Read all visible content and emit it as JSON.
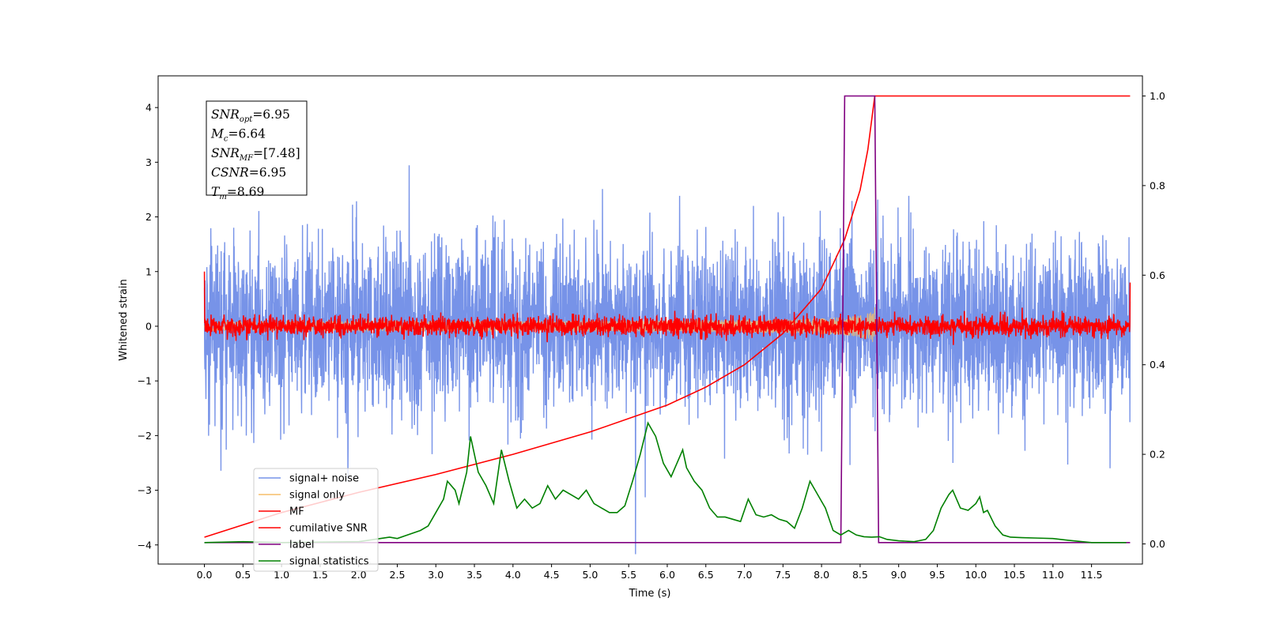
{
  "chart_data": {
    "type": "line",
    "xlabel": "Time (s)",
    "ylabel": "Whitened strain",
    "xlim": [
      -0.6,
      12.16
    ],
    "ylim": [
      -4.35,
      4.58
    ],
    "y2lim": [
      -0.045,
      1.045
    ],
    "xticks": [
      0.0,
      0.5,
      1.0,
      1.5,
      2.0,
      2.5,
      3.0,
      3.5,
      4.0,
      4.5,
      5.0,
      5.5,
      6.0,
      6.5,
      7.0,
      7.5,
      8.0,
      8.5,
      9.0,
      9.5,
      10.0,
      10.5,
      11.0,
      11.5
    ],
    "xtick_labels": [
      "0.0",
      "0.5",
      "1.0",
      "1.5",
      "2.0",
      "2.5",
      "3.0",
      "3.5",
      "4.0",
      "4.5",
      "5.0",
      "5.5",
      "6.0",
      "6.5",
      "7.0",
      "7.5",
      "8.0",
      "8.5",
      "9.0",
      "9.5",
      "10.0",
      "10.5",
      "11.0",
      "11.5"
    ],
    "yticks": [
      -4,
      -3,
      -2,
      -1,
      0,
      1,
      2,
      3,
      4
    ],
    "ytick_labels": [
      "−4",
      "−3",
      "−2",
      "−1",
      "0",
      "1",
      "2",
      "3",
      "4"
    ],
    "y2ticks": [
      0.0,
      0.2,
      0.4,
      0.6,
      0.8,
      1.0
    ],
    "y2tick_labels": [
      "0.0",
      "0.2",
      "0.4",
      "0.6",
      "0.8",
      "1.0"
    ],
    "grid": false,
    "legend_placement": "lower-left",
    "annotation": {
      "lines": [
        {
          "var": "SNR",
          "sub": "opt",
          "value": "=6.95"
        },
        {
          "var": "M",
          "sub": "c",
          "value": "=6.64"
        },
        {
          "var": "SNR",
          "sub": "MF",
          "value": "=[7.48]"
        },
        {
          "var": "CSNR",
          "sub": "",
          "value": "=6.95"
        },
        {
          "var": "T",
          "sub": "m",
          "value": "=8.69"
        }
      ]
    },
    "series": [
      {
        "name": "signal+ noise",
        "color": "#7793e8",
        "axis": "left",
        "kind": "noise",
        "x_range": [
          0.0,
          12.0
        ],
        "typical_amplitude": 1.8,
        "peak_max": 4.17
      },
      {
        "name": "signal only",
        "color": "#f5bd6a",
        "axis": "left",
        "kind": "chirp",
        "x_range": [
          0.0,
          8.69
        ],
        "final_amplitude": 0.6
      },
      {
        "name": "MF",
        "color": "#ff0000",
        "axis": "left",
        "kind": "noise",
        "x_range": [
          0.0,
          12.0
        ],
        "typical_amplitude": 0.2,
        "start_value": 1.0,
        "end_value": 0.8
      },
      {
        "name": "cumilative SNR",
        "color": "#ff0000",
        "axis": "right",
        "kind": "curve",
        "points": [
          [
            0.0,
            0.015
          ],
          [
            1.0,
            0.07
          ],
          [
            2.0,
            0.115
          ],
          [
            3.0,
            0.155
          ],
          [
            4.0,
            0.2
          ],
          [
            5.0,
            0.25
          ],
          [
            6.0,
            0.31
          ],
          [
            6.5,
            0.35
          ],
          [
            7.0,
            0.4
          ],
          [
            7.5,
            0.47
          ],
          [
            8.0,
            0.57
          ],
          [
            8.3,
            0.68
          ],
          [
            8.5,
            0.79
          ],
          [
            8.6,
            0.88
          ],
          [
            8.69,
            1.0
          ],
          [
            12.0,
            1.0
          ]
        ]
      },
      {
        "name": "label",
        "color": "#800080",
        "axis": "right",
        "kind": "curve",
        "points": [
          [
            0.0,
            0.003
          ],
          [
            8.25,
            0.003
          ],
          [
            8.3,
            1.0
          ],
          [
            8.69,
            1.0
          ],
          [
            8.74,
            0.003
          ],
          [
            12.0,
            0.003
          ]
        ]
      },
      {
        "name": "signal statistics",
        "color": "#008000",
        "axis": "right",
        "kind": "curve",
        "points": [
          [
            0.0,
            0.003
          ],
          [
            0.5,
            0.005
          ],
          [
            1.0,
            0.003
          ],
          [
            1.5,
            0.004
          ],
          [
            2.0,
            0.005
          ],
          [
            2.2,
            0.01
          ],
          [
            2.4,
            0.015
          ],
          [
            2.5,
            0.012
          ],
          [
            2.6,
            0.018
          ],
          [
            2.8,
            0.03
          ],
          [
            2.9,
            0.04
          ],
          [
            3.0,
            0.07
          ],
          [
            3.1,
            0.1
          ],
          [
            3.15,
            0.14
          ],
          [
            3.25,
            0.12
          ],
          [
            3.3,
            0.09
          ],
          [
            3.4,
            0.16
          ],
          [
            3.45,
            0.24
          ],
          [
            3.55,
            0.16
          ],
          [
            3.65,
            0.13
          ],
          [
            3.75,
            0.09
          ],
          [
            3.85,
            0.21
          ],
          [
            3.95,
            0.14
          ],
          [
            4.05,
            0.08
          ],
          [
            4.15,
            0.1
          ],
          [
            4.25,
            0.08
          ],
          [
            4.35,
            0.09
          ],
          [
            4.45,
            0.13
          ],
          [
            4.55,
            0.1
          ],
          [
            4.65,
            0.12
          ],
          [
            4.75,
            0.11
          ],
          [
            4.85,
            0.1
          ],
          [
            4.95,
            0.12
          ],
          [
            5.05,
            0.09
          ],
          [
            5.15,
            0.08
          ],
          [
            5.25,
            0.07
          ],
          [
            5.35,
            0.07
          ],
          [
            5.45,
            0.085
          ],
          [
            5.55,
            0.14
          ],
          [
            5.65,
            0.2
          ],
          [
            5.75,
            0.27
          ],
          [
            5.85,
            0.24
          ],
          [
            5.95,
            0.18
          ],
          [
            6.05,
            0.15
          ],
          [
            6.15,
            0.19
          ],
          [
            6.2,
            0.21
          ],
          [
            6.25,
            0.17
          ],
          [
            6.35,
            0.14
          ],
          [
            6.45,
            0.12
          ],
          [
            6.55,
            0.08
          ],
          [
            6.65,
            0.06
          ],
          [
            6.75,
            0.06
          ],
          [
            6.85,
            0.055
          ],
          [
            6.95,
            0.05
          ],
          [
            7.05,
            0.1
          ],
          [
            7.15,
            0.065
          ],
          [
            7.25,
            0.06
          ],
          [
            7.35,
            0.065
          ],
          [
            7.45,
            0.055
          ],
          [
            7.55,
            0.05
          ],
          [
            7.65,
            0.035
          ],
          [
            7.75,
            0.08
          ],
          [
            7.85,
            0.14
          ],
          [
            7.95,
            0.11
          ],
          [
            8.05,
            0.08
          ],
          [
            8.15,
            0.03
          ],
          [
            8.25,
            0.02
          ],
          [
            8.35,
            0.03
          ],
          [
            8.45,
            0.02
          ],
          [
            8.55,
            0.016
          ],
          [
            8.65,
            0.015
          ],
          [
            8.75,
            0.016
          ],
          [
            8.85,
            0.01
          ],
          [
            9.0,
            0.007
          ],
          [
            9.2,
            0.005
          ],
          [
            9.35,
            0.01
          ],
          [
            9.45,
            0.03
          ],
          [
            9.55,
            0.08
          ],
          [
            9.65,
            0.11
          ],
          [
            9.7,
            0.12
          ],
          [
            9.8,
            0.08
          ],
          [
            9.9,
            0.075
          ],
          [
            10.0,
            0.09
          ],
          [
            10.05,
            0.105
          ],
          [
            10.1,
            0.07
          ],
          [
            10.15,
            0.075
          ],
          [
            10.25,
            0.04
          ],
          [
            10.35,
            0.02
          ],
          [
            10.45,
            0.015
          ],
          [
            10.6,
            0.014
          ],
          [
            10.8,
            0.013
          ],
          [
            11.0,
            0.012
          ],
          [
            11.2,
            0.008
          ],
          [
            11.5,
            0.003
          ],
          [
            11.95,
            0.003
          ]
        ]
      }
    ]
  }
}
